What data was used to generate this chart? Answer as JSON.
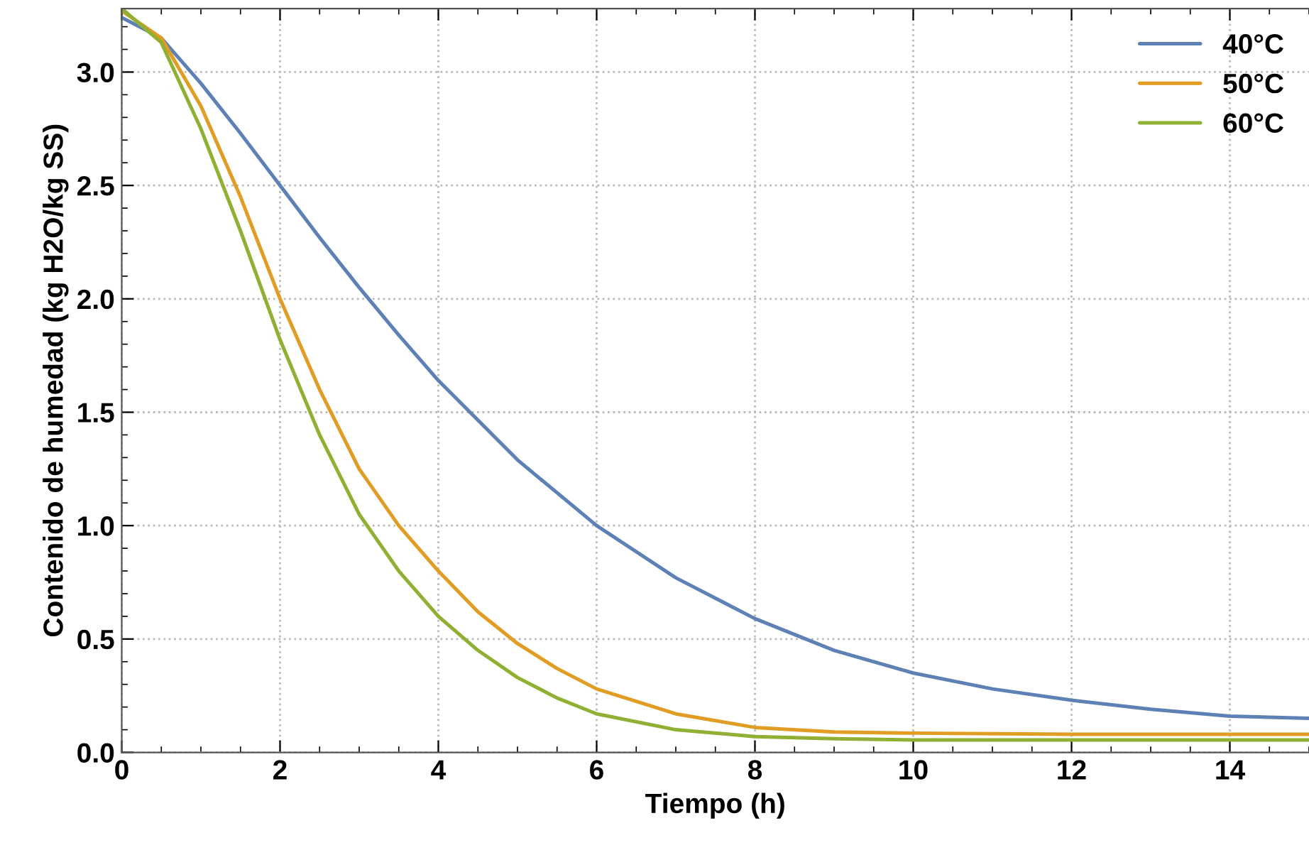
{
  "chart_data": {
    "type": "line",
    "xlabel": "Tiempo (h)",
    "ylabel": "Contenido de humedad (kg H2O/kg SS)",
    "xlim": [
      0,
      15
    ],
    "ylim": [
      0,
      3.28
    ],
    "xticks": [
      0,
      2,
      4,
      6,
      8,
      10,
      12,
      14
    ],
    "yticks": [
      {
        "value": 0,
        "label": "0.0"
      },
      0.5,
      {
        "value": 1,
        "label": "1.0"
      },
      1.5,
      {
        "value": 2,
        "label": "2.0"
      },
      2.5,
      {
        "value": 3,
        "label": "3.0"
      }
    ],
    "grid": true,
    "legend": "top right",
    "marker": "none",
    "line_style": "solid",
    "series": [
      {
        "name": "40°C",
        "color": "#5e81b5",
        "x": [
          0,
          0.5,
          1,
          1.5,
          2,
          2.5,
          3,
          3.5,
          4,
          5,
          6,
          7,
          8,
          9,
          10,
          11,
          12,
          13,
          14,
          15
        ],
        "values": [
          3.24,
          3.15,
          2.95,
          2.73,
          2.5,
          2.27,
          2.05,
          1.84,
          1.64,
          1.29,
          1.0,
          0.77,
          0.59,
          0.45,
          0.35,
          0.28,
          0.23,
          0.19,
          0.16,
          0.15
        ]
      },
      {
        "name": "50°C",
        "color": "#e19c24",
        "x": [
          0,
          0.5,
          1,
          1.5,
          2,
          2.5,
          3,
          3.5,
          4,
          4.5,
          5,
          5.5,
          6,
          7,
          8,
          9,
          10,
          12,
          15
        ],
        "values": [
          3.27,
          3.15,
          2.85,
          2.45,
          2.0,
          1.6,
          1.25,
          1.0,
          0.8,
          0.62,
          0.48,
          0.37,
          0.28,
          0.17,
          0.11,
          0.09,
          0.085,
          0.08,
          0.08
        ]
      },
      {
        "name": "60°C",
        "color": "#8fb032",
        "x": [
          0,
          0.5,
          1,
          1.5,
          2,
          2.5,
          3,
          3.5,
          4,
          4.5,
          5,
          5.5,
          6,
          7,
          8,
          9,
          10,
          15
        ],
        "values": [
          3.28,
          3.13,
          2.75,
          2.3,
          1.82,
          1.4,
          1.05,
          0.8,
          0.6,
          0.45,
          0.33,
          0.24,
          0.17,
          0.1,
          0.07,
          0.06,
          0.055,
          0.055
        ]
      }
    ]
  }
}
